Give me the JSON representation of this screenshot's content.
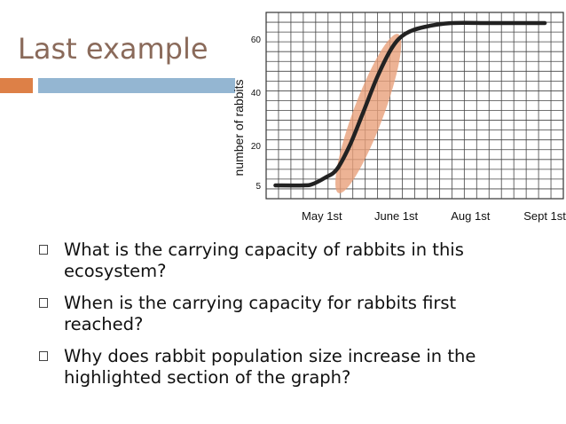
{
  "slide": {
    "title": "Last example",
    "colors": {
      "title": "#8a6a5a",
      "accent_orange": "#dd8047",
      "accent_blue": "#94b6d2"
    }
  },
  "bullets": [
    {
      "text": "What is the carrying capacity of rabbits in this ecosystem?"
    },
    {
      "text": "When is the carrying capacity for rabbits first reached?"
    },
    {
      "text": "Why does rabbit population size increase in the highlighted section of the graph?"
    }
  ],
  "chart_data": {
    "type": "line",
    "title": "",
    "xlabel": "",
    "ylabel": "number of rabbits",
    "x_tick_labels": [
      {
        "label": "May 1st",
        "x": 3
      },
      {
        "label": "June 1st",
        "x": 7
      },
      {
        "label": "Aug 1st",
        "x": 11
      },
      {
        "label": "Sept 1st",
        "x": 15
      }
    ],
    "y_tick_labels": [
      5,
      20,
      40,
      60
    ],
    "xlim": [
      0,
      16
    ],
    "ylim": [
      0,
      70
    ],
    "grid": true,
    "series": [
      {
        "color": "#222222",
        "points": [
          [
            0.5,
            5
          ],
          [
            2,
            5
          ],
          [
            2.5,
            5.5
          ],
          [
            3.2,
            8
          ],
          [
            3.8,
            11
          ],
          [
            4.5,
            20
          ],
          [
            5.2,
            32
          ],
          [
            6,
            46
          ],
          [
            6.8,
            57
          ],
          [
            7.5,
            62
          ],
          [
            8.5,
            64.5
          ],
          [
            10,
            66
          ],
          [
            12,
            66
          ],
          [
            14,
            66
          ],
          [
            15,
            66
          ]
        ]
      }
    ],
    "highlight": {
      "shape": "ellipse",
      "color": "#e8a07a",
      "x_range": [
        4.0,
        7.0
      ],
      "y_range": [
        4,
        60
      ]
    }
  }
}
